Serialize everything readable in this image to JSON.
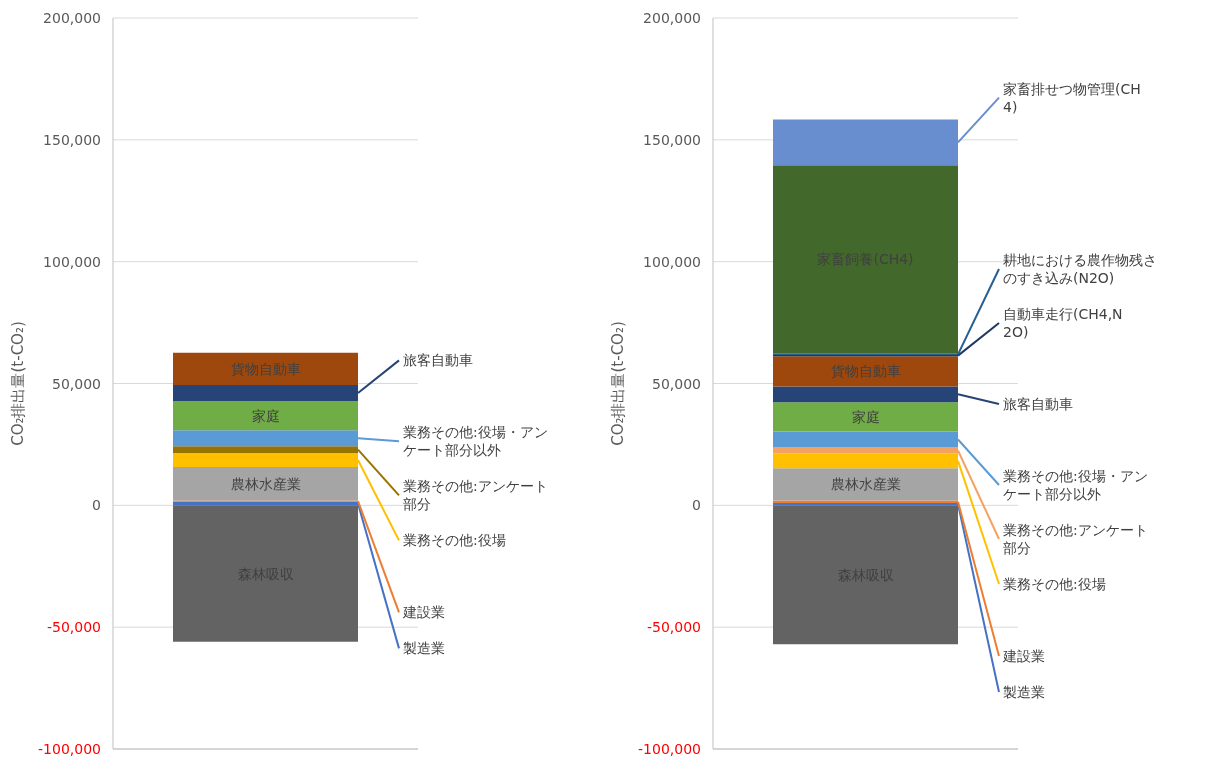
{
  "chart_data": [
    {
      "type": "bar",
      "stacked": true,
      "categories": [
        null
      ],
      "ylabel": "CO₂排出量(t-CO₂)",
      "ylim": [
        -100000,
        200000
      ],
      "yticks": [
        {
          "value": -100000,
          "label": "-100,000"
        },
        {
          "value": -50000,
          "label": "-50,000"
        },
        {
          "value": 0,
          "label": "0"
        },
        {
          "value": 50000,
          "label": "50,000"
        },
        {
          "value": 100000,
          "label": "100,000"
        },
        {
          "value": 150000,
          "label": "150,000"
        },
        {
          "value": 200000,
          "label": "200,000"
        }
      ],
      "grid": "y",
      "series": [
        {
          "name": "森林吸収",
          "color": "#636363",
          "values": [
            -56000
          ]
        },
        {
          "name": "製造業",
          "color": "#4472c4",
          "values": [
            1500
          ]
        },
        {
          "name": "建設業",
          "color": "#ed7d31",
          "values": [
            500
          ]
        },
        {
          "name": "農林水産業",
          "color": "#a5a5a5",
          "values": [
            13700
          ]
        },
        {
          "name": "業務その他:役場",
          "color": "#ffc000",
          "values": [
            5800
          ]
        },
        {
          "name": "業務その他:アンケート部分",
          "color": "#997300",
          "values": [
            2700
          ]
        },
        {
          "name": "業務その他:役場・アンケート部分以外",
          "color": "#5b9bd5",
          "values": [
            6600
          ]
        },
        {
          "name": "家庭",
          "color": "#70ad47",
          "values": [
            12000
          ]
        },
        {
          "name": "旅客自動車",
          "color": "#264478",
          "values": [
            6600
          ]
        },
        {
          "name": "貨物自動車",
          "color": "#9e480e",
          "values": [
            13200
          ]
        }
      ]
    },
    {
      "type": "bar",
      "stacked": true,
      "categories": [
        null
      ],
      "ylabel": "CO₂排出量(t-CO₂)",
      "ylim": [
        -100000,
        200000
      ],
      "yticks": [
        {
          "value": -100000,
          "label": "-100,000"
        },
        {
          "value": -50000,
          "label": "-50,000"
        },
        {
          "value": 0,
          "label": "0"
        },
        {
          "value": 50000,
          "label": "50,000"
        },
        {
          "value": 100000,
          "label": "100,000"
        },
        {
          "value": 150000,
          "label": "150,000"
        },
        {
          "value": 200000,
          "label": "200,000"
        }
      ],
      "grid": "y",
      "series": [
        {
          "name": "森林吸収",
          "color": "#636363",
          "values": [
            -57000
          ]
        },
        {
          "name": "製造業",
          "color": "#4472c4",
          "values": [
            1000
          ]
        },
        {
          "name": "建設業",
          "color": "#ed7d31",
          "values": [
            1000
          ]
        },
        {
          "name": "農林水産業",
          "color": "#a5a5a5",
          "values": [
            13200
          ]
        },
        {
          "name": "業務その他:役場",
          "color": "#ffc000",
          "values": [
            6100
          ]
        },
        {
          "name": "業務その他:アンケート部分",
          "color": "#f4a261",
          "values": [
            2400
          ]
        },
        {
          "name": "業務その他:役場・アンケート部分以外",
          "color": "#5b9bd5",
          "values": [
            6600
          ]
        },
        {
          "name": "家庭",
          "color": "#70ad47",
          "values": [
            12000
          ]
        },
        {
          "name": "旅客自動車",
          "color": "#264478",
          "values": [
            6500
          ]
        },
        {
          "name": "貨物自動車",
          "color": "#9e480e",
          "values": [
            12400
          ]
        },
        {
          "name": "自動車走行(CH4,N2O)",
          "color": "#1f3864",
          "values": [
            500
          ]
        },
        {
          "name": "耕地における農作物残さのすき込み(N2O)",
          "color": "#255e91",
          "values": [
            500
          ]
        },
        {
          "name": "家畜飼養(CH4)",
          "color": "#43682b",
          "values": [
            77400
          ]
        },
        {
          "name": "家畜排せつ物管理(CH4)",
          "color": "#698ed0",
          "values": [
            18700
          ]
        }
      ]
    }
  ]
}
